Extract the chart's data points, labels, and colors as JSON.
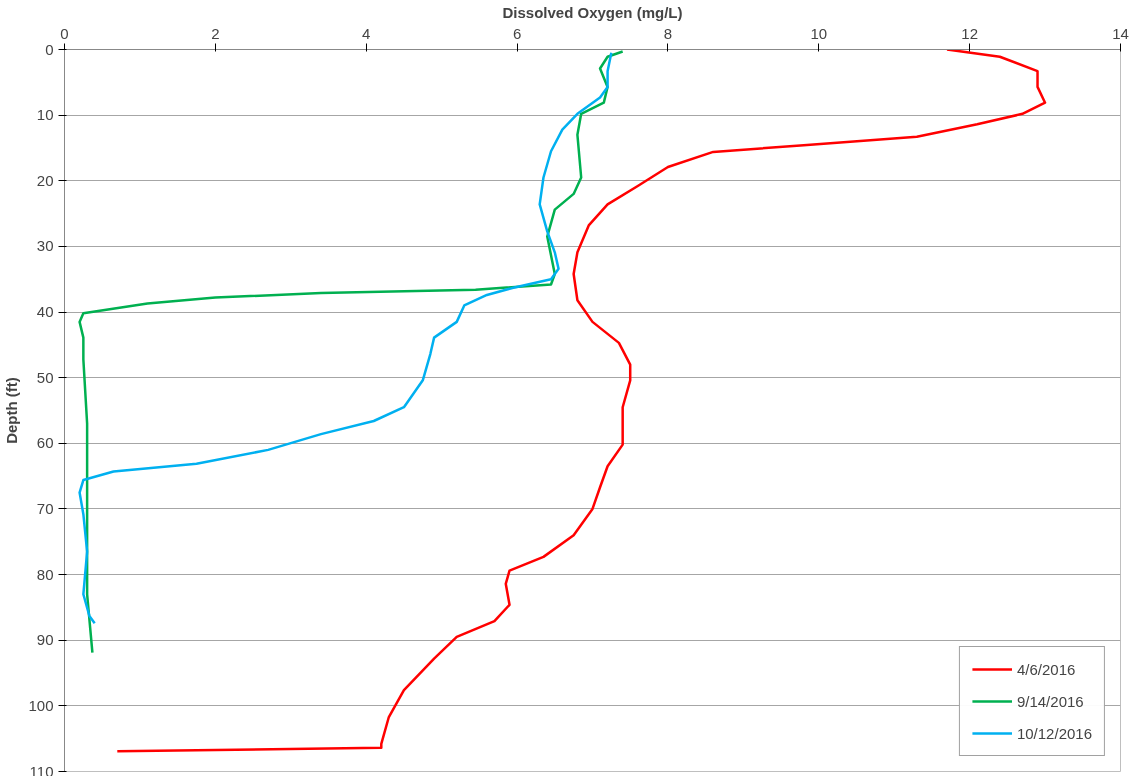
{
  "chart_data": {
    "type": "line",
    "xlabel": "Dissolved Oxygen (mg/L)",
    "ylabel": "Depth (ft)",
    "xlim": [
      0,
      14
    ],
    "xticks": [
      0,
      2,
      4,
      6,
      8,
      10,
      12,
      14
    ],
    "ylim": [
      110,
      0
    ],
    "yticks": [
      0,
      10,
      20,
      30,
      40,
      50,
      60,
      70,
      80,
      90,
      100,
      110
    ],
    "grid": "y",
    "legend": "bottom right",
    "marker": "none",
    "line_style": "solid",
    "series": [
      {
        "name": "4/6/2016",
        "color": "#ff0000",
        "x": [
          11.7,
          12.4,
          12.9,
          12.9,
          13.0,
          12.7,
          12.1,
          11.3,
          9.8,
          8.6,
          8.0,
          7.6,
          7.2,
          6.95,
          6.8,
          6.75,
          6.8,
          7.0,
          7.35,
          7.5,
          7.5,
          7.4,
          7.4,
          7.2,
          7.1,
          7.0,
          6.75,
          6.35,
          5.9,
          5.85,
          5.9,
          5.7,
          5.2,
          4.9,
          4.5,
          4.3,
          4.2,
          4.2,
          0.7
        ],
        "values": [
          0,
          1.1,
          3.3,
          5.7,
          8.1,
          9.8,
          11.4,
          13.3,
          14.6,
          15.6,
          17.9,
          20.8,
          23.6,
          26.8,
          30.9,
          34.2,
          38.2,
          41.5,
          44.7,
          48.0,
          50.4,
          54.5,
          60.2,
          63.5,
          66.7,
          70.0,
          74.0,
          77.3,
          79.4,
          81.4,
          84.6,
          87.1,
          89.5,
          92.8,
          97.6,
          101.7,
          105.8,
          106.4,
          106.9
        ]
      },
      {
        "name": "9/14/2016",
        "color": "#00b050",
        "x": [
          7.4,
          7.2,
          7.1,
          7.2,
          7.15,
          6.85,
          6.8,
          6.85,
          6.75,
          6.5,
          6.4,
          6.5,
          6.45,
          5.45,
          3.4,
          2.0,
          1.1,
          0.25,
          0.2,
          0.25,
          0.25,
          0.3,
          0.3,
          0.3,
          0.37
        ],
        "values": [
          0.3,
          1.1,
          2.9,
          5.7,
          8.1,
          9.8,
          13.0,
          19.5,
          22.0,
          24.4,
          28.5,
          34.2,
          35.8,
          36.6,
          37.1,
          37.8,
          38.7,
          40.2,
          41.5,
          43.9,
          47.2,
          57.0,
          70.0,
          83.0,
          91.9
        ]
      },
      {
        "name": "10/12/2016",
        "color": "#00b0f0",
        "x": [
          7.25,
          7.2,
          7.2,
          7.1,
          6.8,
          6.6,
          6.45,
          6.35,
          6.3,
          6.4,
          6.5,
          6.55,
          6.45,
          5.95,
          5.6,
          5.3,
          5.2,
          4.9,
          4.85,
          4.75,
          4.5,
          4.1,
          3.4,
          2.7,
          1.75,
          0.65,
          0.25,
          0.2,
          0.25,
          0.3,
          0.25,
          0.33,
          0.4
        ],
        "values": [
          0.5,
          3.3,
          5.7,
          7.3,
          9.8,
          12.2,
          15.5,
          19.5,
          23.6,
          27.7,
          30.9,
          33.4,
          35.0,
          36.3,
          37.4,
          39.0,
          41.5,
          43.9,
          46.4,
          50.4,
          54.5,
          56.6,
          58.6,
          61.0,
          63.1,
          64.3,
          65.6,
          67.5,
          70.8,
          76.5,
          83.0,
          86.3,
          87.4
        ]
      }
    ]
  }
}
